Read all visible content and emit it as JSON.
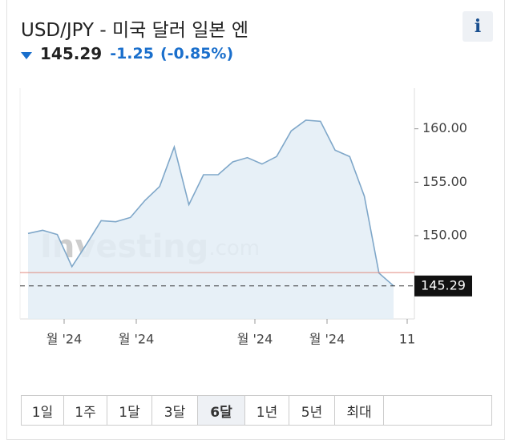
{
  "header": {
    "title": "USD/JPY - 미국 달러 일본 엔",
    "price": "145.29",
    "change": "-1.25",
    "change_pct": "(-0.85%)",
    "info": "i"
  },
  "chart_data": {
    "type": "area",
    "values": [
      150.2,
      150.5,
      150.1,
      147.1,
      149.2,
      151.4,
      151.3,
      151.7,
      153.3,
      154.6,
      158.3,
      152.9,
      155.7,
      155.7,
      156.9,
      157.3,
      156.7,
      157.4,
      159.8,
      160.8,
      160.7,
      158.0,
      157.4,
      153.7,
      146.5,
      145.3
    ],
    "color": "#7fa7c9",
    "fill": "#e3edf6",
    "ylim": [
      142.2,
      163.8
    ],
    "yticks": [
      {
        "value": 150,
        "label": "150.00"
      },
      {
        "value": 155,
        "label": "155.00"
      },
      {
        "value": 160,
        "label": "160.00"
      }
    ],
    "x_labels": [
      "월 '24",
      "월 '24",
      "월 '24",
      "월 '24",
      "11"
    ],
    "prev_close": 146.54,
    "last_value": {
      "value": 145.29,
      "label": "145.29"
    },
    "watermark": "Investing",
    "watermark_suffix": ".com"
  },
  "periods": [
    "1일",
    "1주",
    "1달",
    "3달",
    "6달",
    "1년",
    "5년",
    "최대"
  ],
  "selected_period": 4
}
